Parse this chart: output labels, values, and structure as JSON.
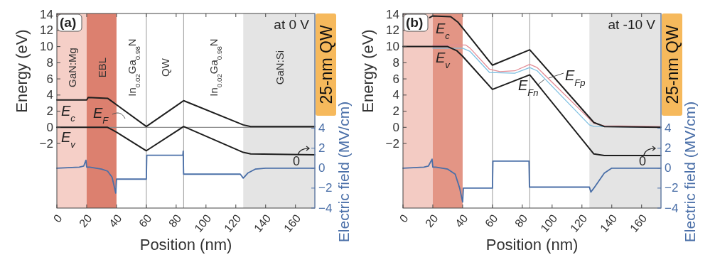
{
  "chart_data": [
    {
      "type": "line",
      "xlabel": "Position (nm)",
      "ylabel": "Energy (eV)",
      "y2label": "Electric field (MV/cm)",
      "xlim": [
        0,
        173
      ],
      "xticks": [
        0,
        20,
        40,
        60,
        80,
        100,
        120,
        140,
        160
      ],
      "ylim": [
        -10,
        14.1
      ],
      "yticks": [
        -2,
        0,
        2,
        4,
        6,
        8,
        10,
        12,
        14
      ],
      "y2lim": [
        -4,
        15.5
      ],
      "y2ticks": [
        -4,
        -2,
        0,
        2,
        4
      ],
      "bands": [
        {
          "axis": "x",
          "from": 0,
          "to": 20,
          "label": "GaN:Mg",
          "color": "#f5cfc7"
        },
        {
          "axis": "x",
          "from": 20,
          "to": 40,
          "label": "EBL",
          "color": "#dc806f"
        },
        {
          "axis": "x",
          "from": 125,
          "to": 173,
          "label": "GaN:Si",
          "color": "#e4e4e4"
        }
      ],
      "ref_lines": [
        {
          "axis": "x",
          "value": 60,
          "color": "#9a9a9a"
        },
        {
          "axis": "x",
          "value": 85,
          "color": "#9a9a9a"
        }
      ],
      "annotations": [
        "(a)",
        "at 0 V",
        "25-nm QW",
        "0",
        "In$_{0.02}$Ga$_{0.98}$N",
        "QW",
        "In$_{0.02}$Ga$_{0.98}$N"
      ],
      "series": [
        {
          "name": "E$_{F}$",
          "color": "#8c8c8c",
          "x": [
            0,
            173
          ],
          "values": [
            0,
            0
          ]
        },
        {
          "name": "E$_{c}$",
          "color": "#1e1e1e",
          "x": [
            0,
            20,
            21,
            34,
            37,
            40,
            60,
            85,
            125,
            130,
            173
          ],
          "values": [
            3.4,
            3.4,
            3.7,
            3.6,
            3.2,
            2.8,
            0.1,
            3.3,
            0.3,
            0.1,
            0.1
          ]
        },
        {
          "name": "E$_{v}$",
          "color": "#1e1e1e",
          "x": [
            0,
            20,
            34,
            37,
            40,
            60,
            85,
            125,
            130,
            173
          ],
          "values": [
            0,
            0,
            0,
            -0.3,
            -0.6,
            -2.9,
            0.1,
            -3.1,
            -3.3,
            -3.4
          ]
        },
        {
          "color": "#4a6fa8",
          "axis": "y2",
          "x": [
            0,
            15,
            18,
            19.5,
            20,
            22,
            30,
            34,
            37,
            39.5,
            40,
            60,
            60.3,
            84.5,
            84.7,
            85,
            123,
            125,
            128,
            133,
            140,
            173
          ],
          "values": [
            0,
            0.1,
            0.2,
            0.8,
            0.1,
            0.1,
            -0.1,
            -0.3,
            -0.9,
            -2.5,
            -1.1,
            -1.1,
            1.3,
            1.3,
            1.7,
            -0.6,
            -0.6,
            -1.0,
            -0.5,
            -0.1,
            0,
            0
          ]
        }
      ]
    },
    {
      "type": "line",
      "xlabel": "Position (nm)",
      "ylabel": "Energy (eV)",
      "y2label": "Electric field (MV/cm)",
      "xlim": [
        0,
        173
      ],
      "xticks": [
        0,
        20,
        40,
        60,
        80,
        100,
        120,
        140,
        160
      ],
      "ylim": [
        -10,
        14.1
      ],
      "yticks": [
        -2,
        0,
        2,
        4,
        6,
        8,
        10,
        12,
        14
      ],
      "y2lim": [
        -4,
        15.5
      ],
      "y2ticks": [
        -4,
        -2,
        0,
        2,
        4
      ],
      "bands": [
        {
          "axis": "x",
          "from": 0,
          "to": 20,
          "color": "#f3cbc3"
        },
        {
          "axis": "x",
          "from": 20,
          "to": 40,
          "color": "#e39585"
        },
        {
          "axis": "x",
          "from": 125,
          "to": 173,
          "color": "#e4e4e4"
        }
      ],
      "ref_lines": [
        {
          "axis": "x",
          "value": 60,
          "color": "#9a9a9a"
        },
        {
          "axis": "x",
          "value": 85,
          "color": "#9a9a9a"
        }
      ],
      "annotations": [
        "(b)",
        "at -10 V",
        "25-nm QW",
        "0"
      ],
      "series": [
        {
          "name": "E$_{Fp}$",
          "color": "#e38d96",
          "x": [
            20,
            42,
            45,
            58,
            65,
            75,
            85,
            90,
            128,
            135,
            173
          ],
          "values": [
            10.2,
            10.2,
            9.8,
            7.2,
            6.9,
            7.0,
            7.8,
            7.4,
            0.5,
            0.2,
            0.1
          ]
        },
        {
          "name": "E$_{Fn}$",
          "color": "#7fc0e2",
          "x": [
            20,
            40,
            45,
            58,
            75,
            85,
            90,
            125,
            128,
            173
          ],
          "values": [
            9.8,
            9.8,
            9.4,
            6.8,
            6.7,
            7.4,
            7.0,
            0.3,
            0.1,
            0
          ]
        },
        {
          "name": "E$_{c}$",
          "color": "#1e1e1e",
          "x": [
            18,
            20,
            32,
            37,
            40,
            60,
            85,
            128,
            135,
            173
          ],
          "values": [
            13.6,
            13.8,
            13.7,
            13.0,
            12.3,
            7.7,
            9.6,
            0.6,
            0.1,
            0
          ]
        },
        {
          "name": "E$_{v}$",
          "color": "#1e1e1e",
          "x": [
            0,
            20,
            30,
            36,
            40,
            60,
            85,
            128,
            135,
            173
          ],
          "values": [
            10.0,
            10.0,
            10.0,
            9.5,
            8.8,
            4.7,
            6.5,
            -3.3,
            -3.5,
            -3.5
          ]
        },
        {
          "color": "#4a6fa8",
          "axis": "y2",
          "x": [
            0,
            14,
            17,
            19.5,
            20,
            22,
            30,
            35,
            38,
            40,
            40.5,
            60,
            60.3,
            84.5,
            84.8,
            125,
            126,
            128,
            135,
            140,
            173
          ],
          "values": [
            0,
            0.1,
            0.2,
            0.9,
            0.1,
            0.1,
            -0.1,
            -0.6,
            -2,
            -3.4,
            -2.0,
            -2.0,
            0.7,
            0.7,
            -1.9,
            -1.9,
            -2.4,
            -2.0,
            -0.5,
            0,
            0
          ]
        }
      ]
    }
  ]
}
